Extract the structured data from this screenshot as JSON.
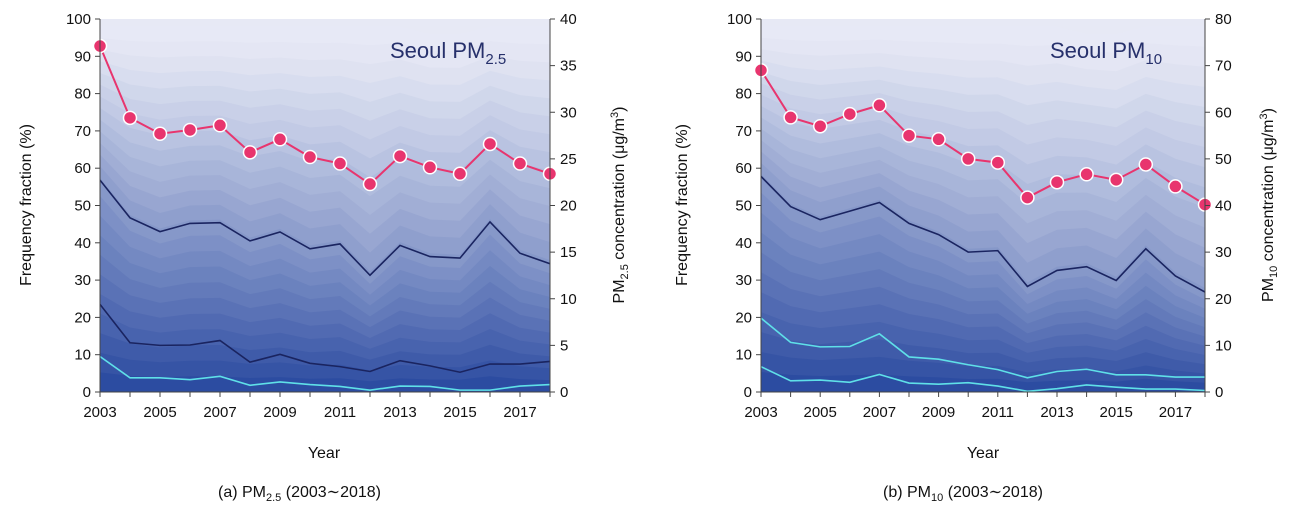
{
  "charts": [
    {
      "id": "a",
      "title_main": "Seoul PM",
      "title_sub": "2.5",
      "caption_pre": "(a) PM",
      "caption_sub": "2.5",
      "caption_post": " (2003∼2018)",
      "xlabel": "Year",
      "ylabel_left": "Frequency fraction (%)",
      "ylabel_right_pre": "PM",
      "ylabel_right_sub": "2.5",
      "ylabel_right_post": " concentration (μg/m",
      "ylabel_right_sup": "3",
      "ylabel_right_end": ")",
      "left_ticks": [
        "0",
        "10",
        "20",
        "30",
        "40",
        "50",
        "60",
        "70",
        "80",
        "90",
        "100"
      ],
      "right_ticks": [
        "0",
        "5",
        "10",
        "15",
        "20",
        "25",
        "30",
        "35",
        "40"
      ],
      "x_ticks": [
        "2003",
        "2005",
        "2007",
        "2009",
        "2011",
        "2013",
        "2015",
        "2017"
      ]
    },
    {
      "id": "b",
      "title_main": "Seoul PM",
      "title_sub": "10",
      "caption_pre": "(b) PM",
      "caption_sub": "10",
      "caption_post": " (2003∼2018)",
      "xlabel": "Year",
      "ylabel_left": "Frequency fraction (%)",
      "ylabel_right_pre": "PM",
      "ylabel_right_sub": "10",
      "ylabel_right_post": " concentration (μg/m",
      "ylabel_right_sup": "3",
      "ylabel_right_end": ")",
      "left_ticks": [
        "0",
        "10",
        "20",
        "30",
        "40",
        "50",
        "60",
        "70",
        "80",
        "90",
        "100"
      ],
      "right_ticks": [
        "0",
        "10",
        "20",
        "30",
        "40",
        "50",
        "60",
        "70",
        "80"
      ],
      "x_ticks": [
        "2003",
        "2005",
        "2007",
        "2009",
        "2011",
        "2013",
        "2015",
        "2017"
      ]
    }
  ],
  "chart_data": [
    {
      "type": "area",
      "name": "Seoul PM2.5",
      "x": [
        2003,
        2004,
        2005,
        2006,
        2007,
        2008,
        2009,
        2010,
        2011,
        2012,
        2013,
        2014,
        2015,
        2016,
        2017,
        2018
      ],
      "xlim": [
        2003,
        2018
      ],
      "ylim_left": [
        0,
        100
      ],
      "ylim_right": [
        0,
        40
      ],
      "series": [
        {
          "name": "frequency line 1 (cyan)",
          "axis": "left",
          "color": "#5fe0e8",
          "values": [
            9.5,
            3.8,
            3.8,
            3.3,
            4.2,
            1.8,
            2.7,
            2.0,
            1.5,
            0.5,
            1.6,
            1.5,
            0.5,
            0.5,
            1.6,
            2.0
          ]
        },
        {
          "name": "frequency line 2",
          "axis": "left",
          "color": "#1a2460",
          "values": [
            23.5,
            13.2,
            12.5,
            12.6,
            13.8,
            8.0,
            10.1,
            7.7,
            6.8,
            5.5,
            8.4,
            7.0,
            5.3,
            7.5,
            7.5,
            8.2
          ]
        },
        {
          "name": "frequency line 3",
          "axis": "left",
          "color": "#1a2460",
          "values": [
            56.8,
            46.7,
            43.0,
            45.2,
            45.4,
            40.5,
            42.9,
            38.4,
            39.7,
            31.3,
            39.3,
            36.3,
            35.9,
            45.6,
            37.2,
            34.4
          ]
        },
        {
          "name": "annual mean concentration",
          "axis": "right",
          "color": "#e8356e",
          "values": [
            37.1,
            29.4,
            27.7,
            28.1,
            28.6,
            25.7,
            27.1,
            25.2,
            24.5,
            22.3,
            25.3,
            24.1,
            23.4,
            26.6,
            24.5,
            23.4
          ]
        }
      ]
    },
    {
      "type": "area",
      "name": "Seoul PM10",
      "x": [
        2003,
        2004,
        2005,
        2006,
        2007,
        2008,
        2009,
        2010,
        2011,
        2012,
        2013,
        2014,
        2015,
        2016,
        2017,
        2018
      ],
      "xlim": [
        2003,
        2018
      ],
      "ylim_left": [
        0,
        100
      ],
      "ylim_right": [
        0,
        80
      ],
      "series": [
        {
          "name": "frequency line 1 (cyan)",
          "axis": "left",
          "color": "#5fe0e8",
          "values": [
            6.8,
            3.0,
            3.2,
            2.6,
            4.7,
            2.4,
            2.1,
            2.5,
            1.6,
            0.2,
            0.9,
            1.9,
            1.3,
            0.8,
            0.8,
            0.4
          ]
        },
        {
          "name": "frequency line 2 (cyan)",
          "axis": "left",
          "color": "#5fe0e8",
          "values": [
            19.8,
            13.3,
            12.1,
            12.2,
            15.6,
            9.4,
            8.8,
            7.3,
            6.0,
            3.8,
            5.5,
            6.1,
            4.6,
            4.6,
            4.0,
            4.0
          ]
        },
        {
          "name": "frequency line 3",
          "axis": "left",
          "color": "#1a2460",
          "values": [
            57.8,
            49.7,
            46.2,
            48.5,
            50.8,
            45.2,
            42.2,
            37.5,
            37.9,
            28.3,
            32.6,
            33.6,
            29.9,
            38.4,
            31.1,
            26.8
          ]
        },
        {
          "name": "annual mean concentration",
          "axis": "right",
          "color": "#e8356e",
          "values": [
            69.0,
            58.9,
            57.0,
            59.6,
            61.5,
            55.0,
            54.2,
            50.0,
            49.2,
            41.7,
            45.0,
            46.7,
            45.5,
            48.8,
            44.1,
            40.2
          ]
        }
      ]
    }
  ],
  "colors": {
    "band_light": "#e7e9f5",
    "band_dark": "#1c3e9a",
    "line_dark": "#1a2460",
    "line_cyan": "#5fe0e8",
    "mean_line": "#e8356e",
    "title_color": "#26306b"
  }
}
